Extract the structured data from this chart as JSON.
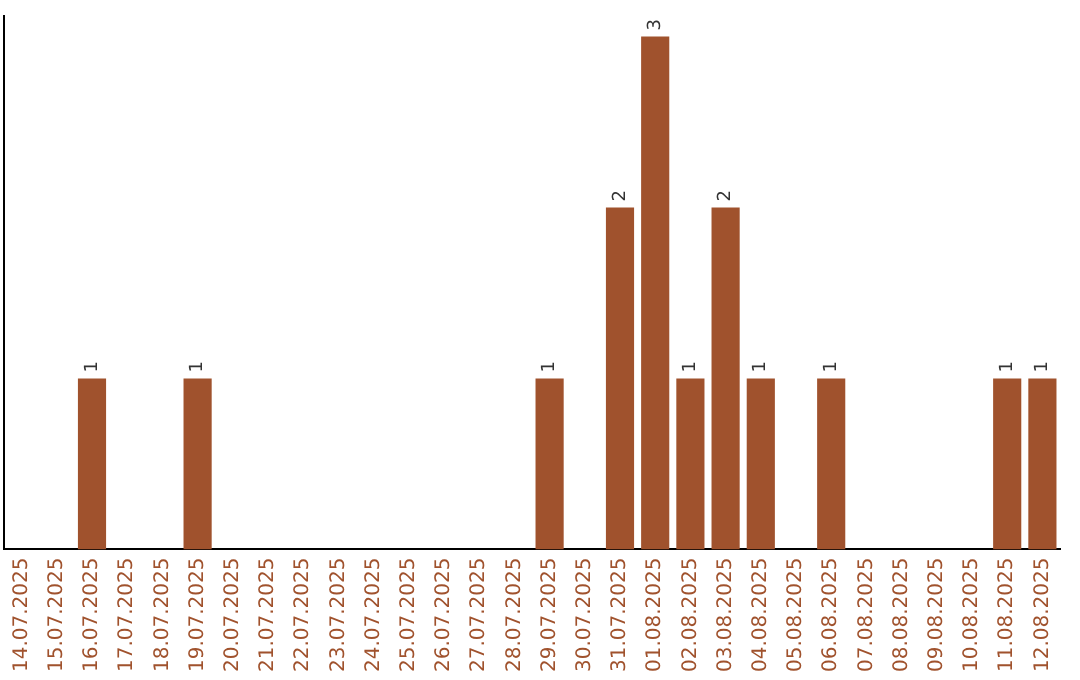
{
  "chart_data": {
    "type": "bar",
    "categories": [
      "14.07.2025",
      "15.07.2025",
      "16.07.2025",
      "17.07.2025",
      "18.07.2025",
      "19.07.2025",
      "20.07.2025",
      "21.07.2025",
      "22.07.2025",
      "23.07.2025",
      "24.07.2025",
      "25.07.2025",
      "26.07.2025",
      "27.07.2025",
      "28.07.2025",
      "29.07.2025",
      "30.07.2025",
      "31.07.2025",
      "01.08.2025",
      "02.08.2025",
      "03.08.2025",
      "04.08.2025",
      "05.08.2025",
      "06.08.2025",
      "07.08.2025",
      "08.08.2025",
      "09.08.2025",
      "10.08.2025",
      "11.08.2025",
      "12.08.2025"
    ],
    "values": [
      0,
      0,
      1,
      0,
      0,
      1,
      0,
      0,
      0,
      0,
      0,
      0,
      0,
      0,
      0,
      1,
      0,
      2,
      3,
      1,
      2,
      1,
      0,
      1,
      0,
      0,
      0,
      0,
      1,
      1
    ],
    "value_labels": [
      null,
      null,
      "1",
      null,
      null,
      "1",
      null,
      null,
      null,
      null,
      null,
      null,
      null,
      null,
      null,
      "1",
      null,
      "2",
      "3",
      "1",
      "2",
      "1",
      null,
      "1",
      null,
      null,
      null,
      null,
      "1",
      "1"
    ],
    "color": "#a0522d",
    "grid": false,
    "legend": false,
    "tick_labels": "x"
  }
}
